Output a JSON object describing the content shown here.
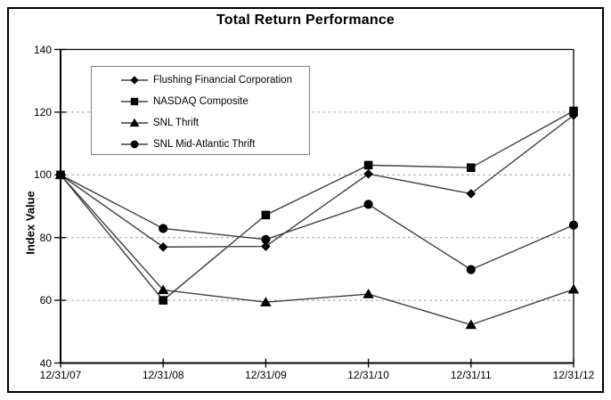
{
  "window": {
    "background": "#ffffff"
  },
  "chart_data": {
    "type": "line",
    "title": "Total Return Performance",
    "xlabel": "",
    "ylabel": "Index Value",
    "categories": [
      "12/31/07",
      "12/31/08",
      "12/31/09",
      "12/31/10",
      "12/31/11",
      "12/31/12"
    ],
    "ylim": [
      40,
      140
    ],
    "y_ticks": [
      40,
      60,
      80,
      100,
      120,
      140
    ],
    "gridline_values": [
      60,
      80,
      100,
      120
    ],
    "grid_style": "dashed-horizontal",
    "legend_position": "inside-top-left",
    "series": [
      {
        "name": "Flushing Financial Corporation",
        "marker": "diamond",
        "values": [
          100,
          77,
          77.2,
          100.3,
          94,
          119
        ]
      },
      {
        "name": "NASDAQ Composite",
        "marker": "square",
        "values": [
          100,
          60,
          87.2,
          103.1,
          102.3,
          120.4
        ]
      },
      {
        "name": "SNL Thrift",
        "marker": "triangle",
        "values": [
          100,
          63.3,
          59.4,
          62,
          52.2,
          63.5
        ]
      },
      {
        "name": "SNL Mid-Atlantic Thrift",
        "marker": "circle",
        "values": [
          100,
          82.9,
          79.4,
          90.6,
          69.8,
          84
        ]
      }
    ],
    "colors": {
      "line": "#3f3f3f",
      "marker": "#000000",
      "grid": "#a6a6a6",
      "axis": "#000000",
      "text": "#000000",
      "legend_border": "#808080",
      "frame_border": "#000000"
    }
  }
}
